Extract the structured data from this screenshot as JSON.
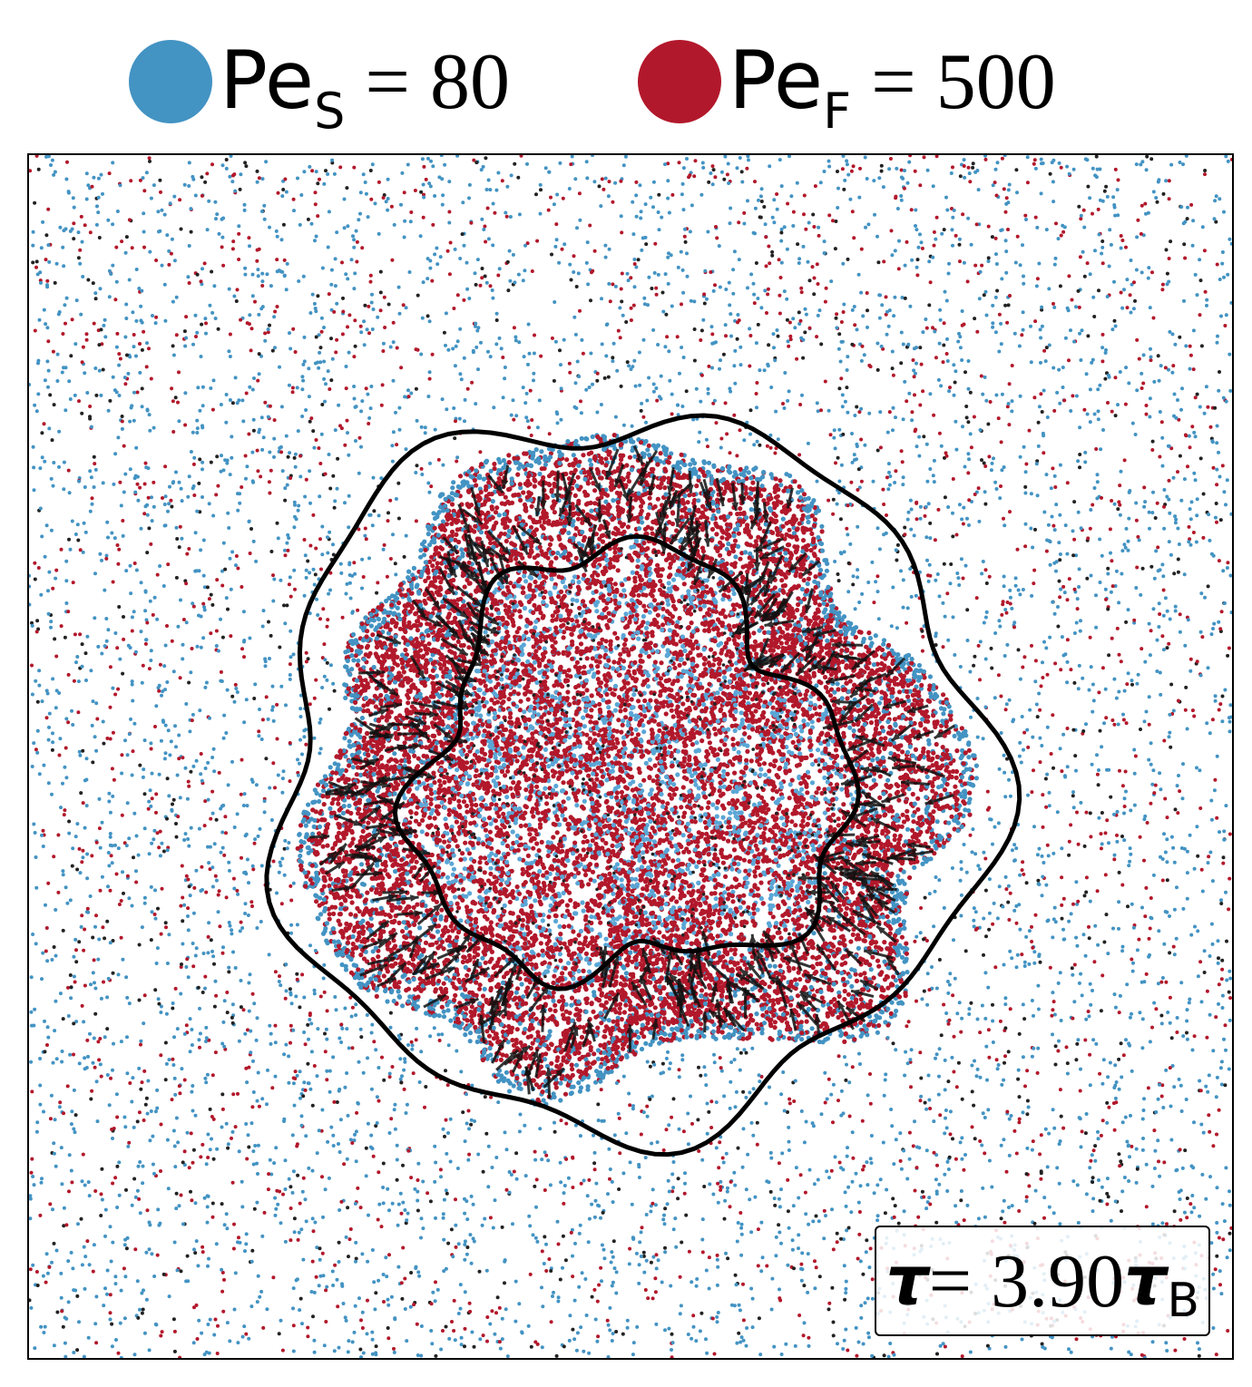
{
  "legend": {
    "slow": {
      "symbol": "Pe",
      "subscript": "S",
      "text": " = 80",
      "color": "#4393c3"
    },
    "fast": {
      "symbol": "Pe",
      "subscript": "F",
      "text": " = 500",
      "color": "#b2182b"
    }
  },
  "annotation": {
    "tau_symbol": "τ",
    "middle": " = 3.90 ",
    "tau_unit_symbol": "τ",
    "tau_unit_subscript": "B"
  },
  "colors": {
    "slow_particles": "#4393c3",
    "fast_particles": "#b2182b",
    "orientation_arrows": "#111111",
    "interface_contours": "#000000"
  },
  "chart_data": {
    "type": "scatter",
    "description_series": [
      {
        "name": "Pe_S = 80",
        "color": "#4393c3"
      },
      {
        "name": "Pe_F = 500",
        "color": "#b2182b"
      }
    ],
    "time": 3.9,
    "axes_visible": false,
    "grid": false,
    "legend_position": "top"
  }
}
